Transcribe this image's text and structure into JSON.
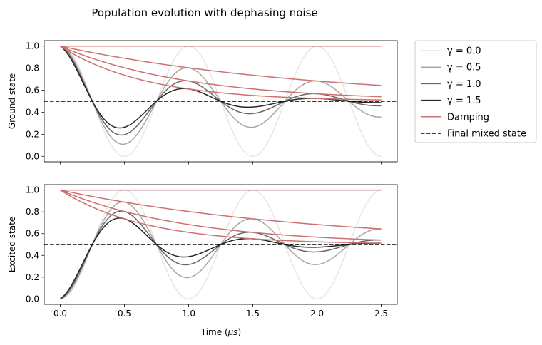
{
  "chart_data": {
    "type": "line",
    "title": "Population evolution with dephasing noise",
    "xlabel": "Time ($\\mu s$)",
    "xlabel_parts": [
      "Time (",
      "μs",
      ")"
    ],
    "xlim": [
      -0.125,
      2.625
    ],
    "xticks": [
      0.0,
      0.5,
      1.0,
      1.5,
      2.0,
      2.5
    ],
    "xtick_labels": [
      "0.0",
      "0.5",
      "1.0",
      "1.5",
      "2.0",
      "2.5"
    ],
    "model": {
      "omega_rad_per_us": 6.2832,
      "gammas": [
        0.0,
        0.5,
        1.0,
        1.5
      ],
      "final_mixed_state": 0.5,
      "t_range": [
        0.0,
        2.5
      ]
    },
    "panels": [
      {
        "ylabel": "Ground state",
        "ylim": [
          -0.05,
          1.05
        ],
        "yticks": [
          0.0,
          0.2,
          0.4,
          0.6,
          0.8,
          1.0
        ],
        "ytick_labels": [
          "0.0",
          "0.2",
          "0.4",
          "0.6",
          "0.8",
          "1.0"
        ],
        "kind": "ground"
      },
      {
        "ylabel": "Excited state",
        "ylim": [
          -0.05,
          1.05
        ],
        "yticks": [
          0.0,
          0.2,
          0.4,
          0.6,
          0.8,
          1.0
        ],
        "ytick_labels": [
          "0.0",
          "0.2",
          "0.4",
          "0.6",
          "0.8",
          "1.0"
        ],
        "kind": "excited"
      }
    ],
    "series": [
      {
        "name": "γ = 0.0",
        "gamma": 0.0,
        "color": "#e6e6e6"
      },
      {
        "name": "γ = 0.5",
        "gamma": 0.5,
        "color": "#a6a6a6"
      },
      {
        "name": "γ = 1.0",
        "gamma": 1.0,
        "color": "#666666"
      },
      {
        "name": "γ = 1.5",
        "gamma": 1.5,
        "color": "#262626"
      }
    ],
    "damping": {
      "name": "Damping",
      "color": "#cd7070"
    },
    "mixed": {
      "name": "Final mixed state",
      "color": "#000000"
    },
    "legend": {
      "placement": "outside-right",
      "entries": [
        {
          "label": "γ = 0.0",
          "color": "#e6e6e6",
          "dash": false
        },
        {
          "label": "γ = 0.5",
          "color": "#a6a6a6",
          "dash": false
        },
        {
          "label": "γ = 1.0",
          "color": "#666666",
          "dash": false
        },
        {
          "label": "γ = 1.5",
          "color": "#262626",
          "dash": false
        },
        {
          "label": "Damping",
          "color": "#cd7070",
          "dash": false
        },
        {
          "label": "Final mixed state",
          "color": "#000000",
          "dash": true
        }
      ]
    },
    "grid": false
  }
}
